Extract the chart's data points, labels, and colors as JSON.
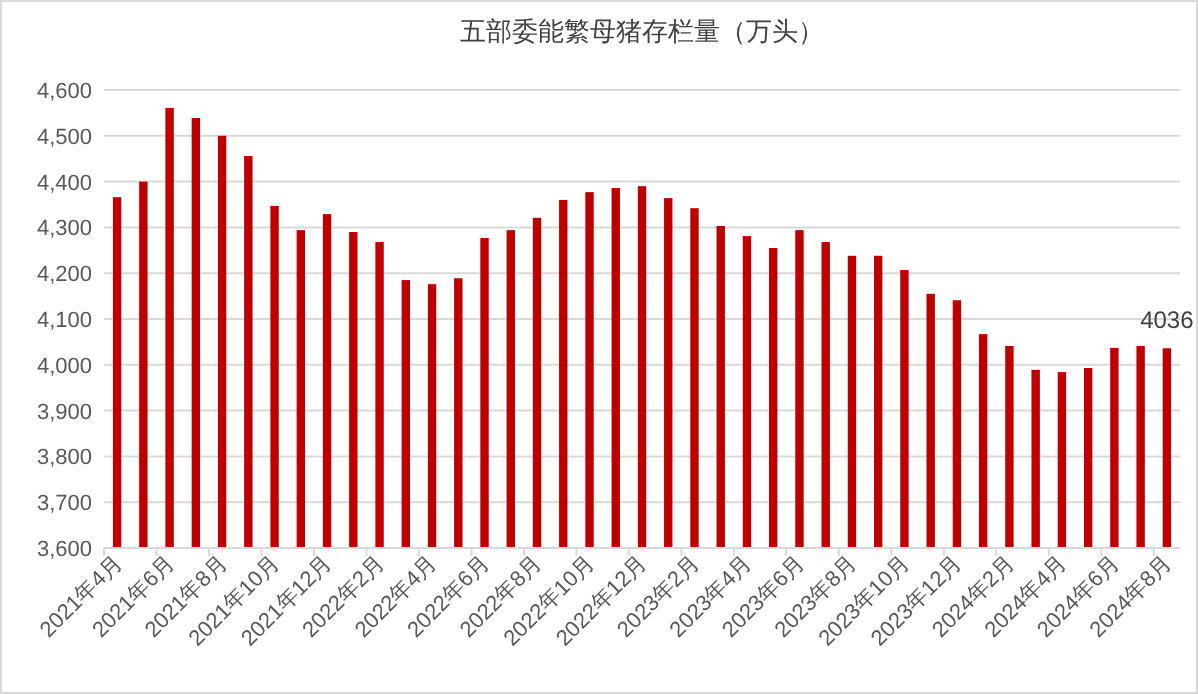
{
  "chart_data": {
    "type": "bar",
    "title": "五部委能繁母猪存栏量（万头）",
    "categories": [
      "2021年4月",
      null,
      "2021年6月",
      null,
      "2021年8月",
      null,
      "2021年10月",
      null,
      "2021年12月",
      null,
      "2022年2月",
      null,
      "2022年4月",
      null,
      "2022年6月",
      null,
      "2022年8月",
      null,
      "2022年10月",
      null,
      "2022年12月",
      null,
      "2023年2月",
      null,
      "2023年4月",
      null,
      "2023年6月",
      null,
      "2023年8月",
      null,
      "2023年10月",
      null,
      "2023年12月",
      null,
      "2024年2月",
      null,
      "2024年4月",
      null,
      "2024年6月",
      null,
      "2024年8月"
    ],
    "values": [
      4366,
      4400,
      4561,
      4539,
      4500,
      4456,
      4347,
      4294,
      4329,
      4290,
      4268,
      4185,
      4176,
      4189,
      4277,
      4294,
      4321,
      4360,
      4377,
      4386,
      4390,
      4364,
      4342,
      4303,
      4281,
      4255,
      4294,
      4268,
      4238,
      4238,
      4207,
      4155,
      4141,
      4067,
      4041,
      3989,
      3984,
      3993,
      4037,
      4041,
      4036
    ],
    "value_labels": [
      null,
      null,
      null,
      null,
      null,
      null,
      null,
      null,
      null,
      null,
      null,
      null,
      null,
      null,
      null,
      null,
      null,
      null,
      null,
      null,
      null,
      null,
      null,
      null,
      null,
      null,
      null,
      null,
      null,
      null,
      null,
      null,
      null,
      null,
      null,
      null,
      null,
      null,
      null,
      null,
      "4036"
    ],
    "color": "#c00000",
    "ylim": [
      3600,
      4600
    ],
    "yticks": [
      {
        "value": 3600,
        "label": "3,600"
      },
      {
        "value": 3700,
        "label": "3,700"
      },
      {
        "value": 3800,
        "label": "3,800"
      },
      {
        "value": 3900,
        "label": "3,900"
      },
      {
        "value": 4000,
        "label": "4,000"
      },
      {
        "value": 4100,
        "label": "4,100"
      },
      {
        "value": 4200,
        "label": "4,200"
      },
      {
        "value": 4300,
        "label": "4,300"
      },
      {
        "value": 4400,
        "label": "4,400"
      },
      {
        "value": 4500,
        "label": "4,500"
      },
      {
        "value": 4600,
        "label": "4,600"
      }
    ],
    "grid": "y"
  }
}
